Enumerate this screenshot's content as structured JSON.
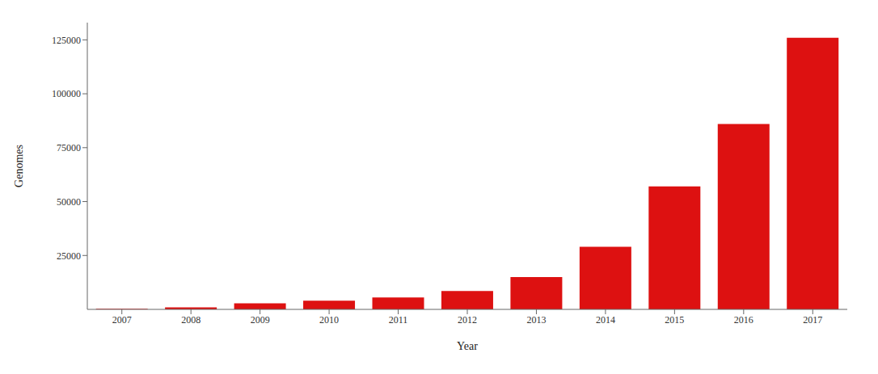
{
  "chart_data": {
    "type": "bar",
    "categories": [
      "2007",
      "2008",
      "2009",
      "2010",
      "2011",
      "2012",
      "2013",
      "2014",
      "2015",
      "2016",
      "2017"
    ],
    "values": [
      300,
      900,
      2800,
      4000,
      5500,
      8500,
      15000,
      29000,
      57000,
      86000,
      126000
    ],
    "color": "#dd1111",
    "xlabel": "Year",
    "ylabel": "Genomes",
    "ylim": [
      0,
      133000
    ],
    "yticks": [
      25000,
      50000,
      75000,
      100000,
      125000
    ],
    "grid": false
  }
}
